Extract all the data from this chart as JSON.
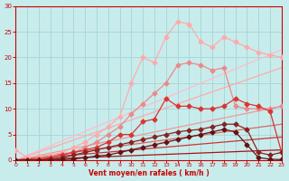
{
  "bg_color": "#c8ecec",
  "grid_color": "#a8d8d8",
  "xlabel": "Vent moyen/en rafales ( km/h )",
  "xlim": [
    0,
    23
  ],
  "ylim": [
    0,
    30
  ],
  "xticks": [
    0,
    1,
    2,
    3,
    4,
    5,
    6,
    7,
    8,
    9,
    10,
    11,
    12,
    13,
    14,
    15,
    16,
    17,
    18,
    19,
    20,
    21,
    22,
    23
  ],
  "yticks": [
    0,
    5,
    10,
    15,
    20,
    25,
    30
  ],
  "lines": [
    {
      "x": [
        0,
        23
      ],
      "y": [
        0,
        21.5
      ],
      "color": "#ffbbcc",
      "lw": 0.9,
      "marker": null,
      "ms": 0
    },
    {
      "x": [
        0,
        23
      ],
      "y": [
        0,
        18.0
      ],
      "color": "#ffaaaa",
      "lw": 0.9,
      "marker": null,
      "ms": 0
    },
    {
      "x": [
        0,
        23
      ],
      "y": [
        0,
        10.5
      ],
      "color": "#ee9999",
      "lw": 0.9,
      "marker": null,
      "ms": 0
    },
    {
      "x": [
        0,
        23
      ],
      "y": [
        0,
        7.0
      ],
      "color": "#dd6666",
      "lw": 0.9,
      "marker": null,
      "ms": 0
    },
    {
      "x": [
        0,
        23
      ],
      "y": [
        0,
        4.5
      ],
      "color": "#cc3333",
      "lw": 0.9,
      "marker": null,
      "ms": 0
    },
    {
      "x": [
        0,
        23
      ],
      "y": [
        0,
        2.0
      ],
      "color": "#aa1111",
      "lw": 0.9,
      "marker": null,
      "ms": 0
    },
    {
      "x": [
        0,
        1,
        2,
        3,
        4,
        5,
        6,
        7,
        8,
        9,
        10,
        11,
        12,
        13,
        14,
        15,
        16,
        17,
        18,
        19,
        20,
        21,
        22,
        23
      ],
      "y": [
        2,
        0.5,
        0.8,
        1.0,
        1.5,
        2.5,
        3.5,
        5,
        6.5,
        8.5,
        15,
        20,
        19,
        24,
        27,
        26.5,
        23,
        22,
        24,
        23,
        22,
        21,
        20.5,
        20
      ],
      "color": "#ffaaaa",
      "lw": 0.9,
      "marker": "D",
      "ms": 2.5
    },
    {
      "x": [
        0,
        1,
        2,
        3,
        4,
        5,
        6,
        7,
        8,
        9,
        10,
        11,
        12,
        13,
        14,
        15,
        16,
        17,
        18,
        19,
        20,
        21,
        22,
        23
      ],
      "y": [
        0,
        0,
        0.3,
        0.5,
        1,
        1.5,
        2.5,
        3.5,
        5,
        6.5,
        9,
        11,
        13,
        15,
        18.5,
        19,
        18.5,
        17.5,
        18,
        10.5,
        10,
        10,
        10,
        10.5
      ],
      "color": "#ee8888",
      "lw": 0.9,
      "marker": "D",
      "ms": 2.5
    },
    {
      "x": [
        0,
        1,
        2,
        3,
        4,
        5,
        6,
        7,
        8,
        9,
        10,
        11,
        12,
        13,
        14,
        15,
        16,
        17,
        18,
        19,
        20,
        21,
        22,
        23
      ],
      "y": [
        0,
        0,
        0.2,
        0.5,
        1,
        1.5,
        2,
        2.5,
        3.5,
        5,
        5,
        7.5,
        8,
        12,
        10.5,
        10.5,
        10,
        10,
        10.5,
        12,
        11,
        10.5,
        9.5,
        1.5
      ],
      "color": "#dd3333",
      "lw": 0.9,
      "marker": "D",
      "ms": 2.5
    },
    {
      "x": [
        0,
        1,
        2,
        3,
        4,
        5,
        6,
        7,
        8,
        9,
        10,
        11,
        12,
        13,
        14,
        15,
        16,
        17,
        18,
        19,
        20,
        21,
        22,
        23
      ],
      "y": [
        0,
        0,
        0,
        0.2,
        0.5,
        1,
        1.5,
        2,
        2.5,
        3,
        3.5,
        4,
        4.5,
        5,
        5.5,
        5.8,
        6,
        6.5,
        7,
        7,
        6,
        1.5,
        1,
        1.5
      ],
      "color": "#882222",
      "lw": 0.9,
      "marker": "D",
      "ms": 2.5
    },
    {
      "x": [
        0,
        1,
        2,
        3,
        4,
        5,
        6,
        7,
        8,
        9,
        10,
        11,
        12,
        13,
        14,
        15,
        16,
        17,
        18,
        19,
        20,
        21,
        22,
        23
      ],
      "y": [
        0,
        0,
        0,
        0,
        0.1,
        0.2,
        0.5,
        0.8,
        1,
        1.5,
        2,
        2.5,
        3,
        3.5,
        4,
        4.5,
        5,
        5.5,
        6,
        5.5,
        3,
        0.5,
        0.2,
        0.1
      ],
      "color": "#661111",
      "lw": 0.9,
      "marker": "D",
      "ms": 2.5
    }
  ]
}
